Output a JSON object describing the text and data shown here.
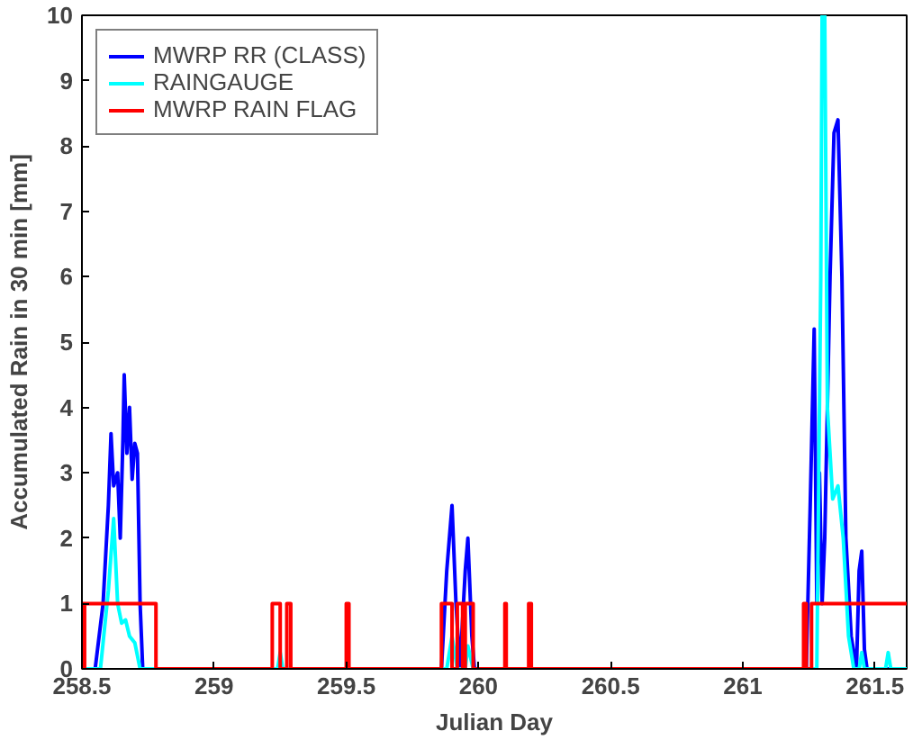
{
  "chart_data": {
    "type": "line",
    "xlabel": "Julian Day",
    "ylabel": "Accumulated Rain in 30 min [mm]",
    "xlim": [
      258.5,
      261.62
    ],
    "xticks": [
      258.5,
      259,
      259.5,
      260,
      260.5,
      261,
      261.5
    ],
    "ylim": [
      0,
      10
    ],
    "yticks": [
      0,
      1,
      2,
      3,
      4,
      5,
      6,
      7,
      8,
      9,
      10
    ],
    "grid": false,
    "legend": "top left",
    "marker": "none",
    "line_style": "solid",
    "series": [
      {
        "name": "MWRP RR (CLASS)",
        "color": "#0000ff",
        "x": [
          258.5,
          258.55,
          258.58,
          258.6,
          258.61,
          258.62,
          258.635,
          258.645,
          258.655,
          258.66,
          258.67,
          258.68,
          258.69,
          258.7,
          258.71,
          258.72,
          258.73,
          259.86,
          259.88,
          259.9,
          259.915,
          259.93,
          259.95,
          259.96,
          259.975,
          259.985,
          261.24,
          261.255,
          261.27,
          261.28,
          261.29,
          261.3,
          261.31,
          261.33,
          261.345,
          261.36,
          261.375,
          261.39,
          261.41,
          261.43,
          261.44,
          261.45,
          261.46,
          261.47,
          261.62
        ],
        "values": [
          0,
          0,
          1,
          2.5,
          3.6,
          2.8,
          3.0,
          2.0,
          3.5,
          4.5,
          3.3,
          4.0,
          2.9,
          3.45,
          3.3,
          1.0,
          0,
          0,
          1.5,
          2.5,
          1.0,
          0,
          1.5,
          2.0,
          0.5,
          0,
          0,
          2.5,
          5.2,
          1.0,
          3.0,
          1.0,
          2.0,
          6.0,
          8.2,
          8.4,
          6.0,
          2.0,
          0.5,
          0,
          1.5,
          1.8,
          0.3,
          0,
          0
        ]
      },
      {
        "name": "RAINGAUGE",
        "color": "#00ffff",
        "x": [
          258.5,
          258.57,
          258.6,
          258.62,
          258.635,
          258.65,
          258.665,
          258.68,
          258.7,
          258.72,
          259.24,
          259.25,
          259.26,
          259.88,
          259.9,
          259.92,
          259.95,
          259.96,
          259.98,
          261.28,
          261.295,
          261.3,
          261.31,
          261.32,
          261.34,
          261.36,
          261.38,
          261.4,
          261.42,
          261.44,
          261.45,
          261.46,
          261.54,
          261.55,
          261.56,
          261.62
        ],
        "values": [
          0,
          0,
          1.2,
          2.3,
          1.0,
          0.7,
          0.75,
          0.5,
          0.4,
          0,
          0,
          0.25,
          0,
          0,
          0.5,
          0,
          0,
          0.35,
          0,
          0,
          6.0,
          10,
          10,
          4.0,
          2.6,
          2.8,
          2.0,
          0.5,
          0,
          0,
          0.25,
          0,
          0,
          0.25,
          0,
          0
        ]
      },
      {
        "name": "MWRP RAIN FLAG",
        "color": "#ff0000",
        "x": [
          258.5,
          258.5,
          258.505,
          258.505,
          258.51,
          258.51,
          258.78,
          258.78,
          259.22,
          259.22,
          259.25,
          259.25,
          259.275,
          259.275,
          259.29,
          259.29,
          259.5,
          259.5,
          259.51,
          259.51,
          259.86,
          259.86,
          259.9,
          259.9,
          259.92,
          259.92,
          259.94,
          259.94,
          259.95,
          259.95,
          259.98,
          259.98,
          260.1,
          260.1,
          260.105,
          260.105,
          260.19,
          260.19,
          260.2,
          260.2,
          261.23,
          261.23,
          261.24,
          261.24,
          261.26,
          261.26,
          261.62
        ],
        "values": [
          0,
          1,
          1,
          0,
          0,
          1,
          1,
          0,
          0,
          1,
          1,
          0,
          0,
          1,
          1,
          0,
          0,
          1,
          1,
          0,
          0,
          1,
          1,
          0,
          0,
          1,
          1,
          0,
          0,
          1,
          1,
          0,
          0,
          1,
          1,
          0,
          0,
          1,
          1,
          0,
          0,
          1,
          1,
          0,
          0,
          1,
          1
        ]
      }
    ]
  }
}
